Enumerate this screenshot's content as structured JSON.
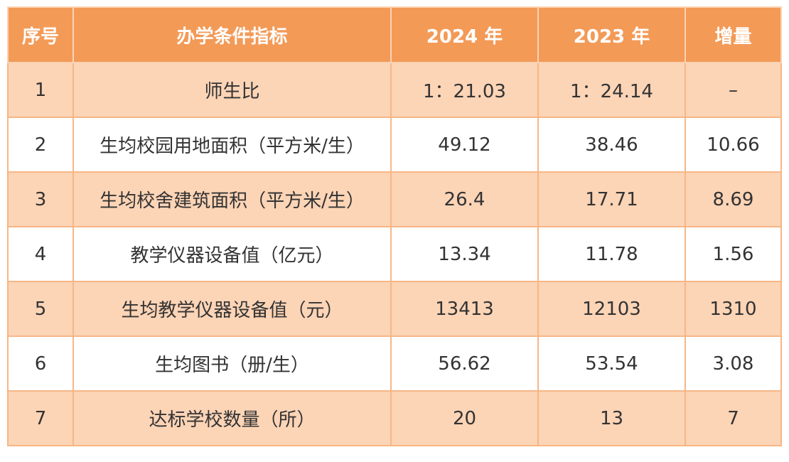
{
  "table": {
    "headers": [
      "序号",
      "办学条件指标",
      "2024 年",
      "2023 年",
      "增量"
    ],
    "rows": [
      [
        "1",
        "师生比",
        "1：21.03",
        "1：24.14",
        "–"
      ],
      [
        "2",
        "生均校园用地面积（平方米/生）",
        "49.12",
        "38.46",
        "10.66"
      ],
      [
        "3",
        "生均校舍建筑面积（平方米/生）",
        "26.4",
        "17.71",
        "8.69"
      ],
      [
        "4",
        "教学仪器设备值（亿元）",
        "13.34",
        "11.78",
        "1.56"
      ],
      [
        "5",
        "生均教学仪器设备值（元）",
        "13413",
        "12103",
        "1310"
      ],
      [
        "6",
        "生均图书（册/生）",
        "56.62",
        "53.54",
        "3.08"
      ],
      [
        "7",
        "达标学校数量（所）",
        "20",
        "13",
        "7"
      ]
    ]
  },
  "colors": {
    "header_bg": "#f39a57",
    "odd_row_bg": "#fcd4b6",
    "even_row_bg": "#ffffff",
    "border": "#f5a469"
  }
}
